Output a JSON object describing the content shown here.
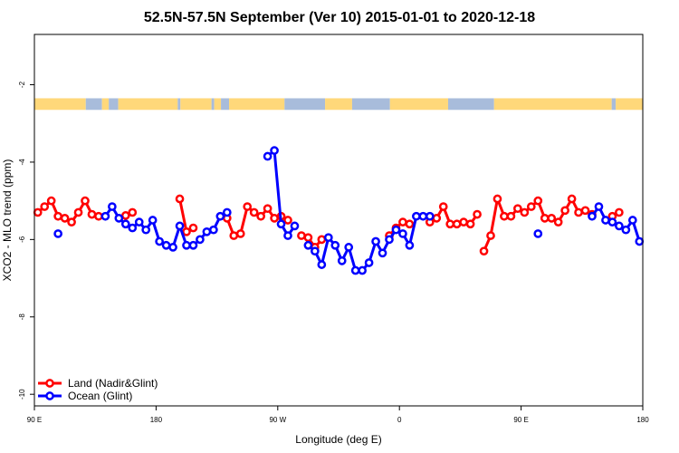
{
  "chart_data": {
    "type": "line",
    "title": "52.5N-57.5N September (Ver 10)   2015-01-01 to 2020-12-18",
    "xlabel": "Longitude (deg E)",
    "ylabel": "XCO2 - MLO trend (ppm)",
    "xlim": [
      90,
      540
    ],
    "ylim": [
      -10.3,
      -0.7
    ],
    "x_ticks": [
      {
        "value": 90,
        "label": "90 E"
      },
      {
        "value": 180,
        "label": "180"
      },
      {
        "value": 270,
        "label": "90 W"
      },
      {
        "value": 360,
        "label": "0"
      },
      {
        "value": 450,
        "label": "90 E"
      },
      {
        "value": 540,
        "label": "180"
      }
    ],
    "y_ticks": [
      {
        "value": -2,
        "label": "-2"
      },
      {
        "value": -4,
        "label": "-4"
      },
      {
        "value": -6,
        "label": "-6"
      },
      {
        "value": -8,
        "label": "-8"
      },
      {
        "value": -10,
        "label": "-10"
      }
    ],
    "series": [
      {
        "name": "Land (Nadir&Glint)",
        "color": "#ff0000",
        "segments": [
          [
            [
              92.5,
              -5.3
            ],
            [
              97.5,
              -5.15
            ],
            [
              102.5,
              -5.0
            ],
            [
              107.5,
              -5.4
            ],
            [
              112.5,
              -5.45
            ],
            [
              117.5,
              -5.55
            ],
            [
              122.5,
              -5.3
            ],
            [
              127.5,
              -5.0
            ],
            [
              132.5,
              -5.35
            ],
            [
              137.5,
              -5.4
            ]
          ],
          [
            [
              157.5,
              -5.38
            ],
            [
              162.5,
              -5.3
            ]
          ],
          [
            [
              197.5,
              -4.95
            ],
            [
              202.5,
              -5.8
            ],
            [
              207.5,
              -5.7
            ]
          ],
          [
            [
              232.5,
              -5.45
            ],
            [
              237.5,
              -5.9
            ],
            [
              242.5,
              -5.85
            ],
            [
              247.5,
              -5.15
            ],
            [
              252.5,
              -5.3
            ],
            [
              257.5,
              -5.4
            ],
            [
              262.5,
              -5.2
            ],
            [
              267.5,
              -5.45
            ],
            [
              272.5,
              -5.4
            ],
            [
              277.5,
              -5.5
            ]
          ],
          [
            [
              287.5,
              -5.9
            ],
            [
              292.5,
              -5.95
            ],
            [
              297.5,
              -6.2
            ],
            [
              302.5,
              -6.0
            ]
          ],
          [
            [
              352.5,
              -5.9
            ],
            [
              357.5,
              -5.7
            ],
            [
              362.5,
              -5.55
            ],
            [
              367.5,
              -5.6
            ]
          ],
          [
            [
              382.5,
              -5.55
            ],
            [
              387.5,
              -5.45
            ],
            [
              392.5,
              -5.15
            ],
            [
              397.5,
              -5.6
            ],
            [
              402.5,
              -5.6
            ],
            [
              407.5,
              -5.55
            ],
            [
              412.5,
              -5.6
            ],
            [
              417.5,
              -5.35
            ]
          ],
          [
            [
              422.5,
              -6.3
            ],
            [
              427.5,
              -5.9
            ],
            [
              432.5,
              -4.95
            ],
            [
              437.5,
              -5.4
            ],
            [
              442.5,
              -5.4
            ],
            [
              447.5,
              -5.2
            ],
            [
              452.5,
              -5.3
            ],
            [
              457.5,
              -5.15
            ],
            [
              462.5,
              -5.0
            ],
            [
              467.5,
              -5.45
            ]
          ],
          [
            [
              472.5,
              -5.45
            ],
            [
              477.5,
              -5.55
            ],
            [
              482.5,
              -5.25
            ],
            [
              487.5,
              -4.95
            ],
            [
              492.5,
              -5.3
            ],
            [
              497.5,
              -5.25
            ],
            [
              502.5,
              -5.35
            ]
          ],
          [
            [
              517.5,
              -5.4
            ],
            [
              522.5,
              -5.3
            ]
          ]
        ]
      },
      {
        "name": "Ocean (Glint)",
        "color": "#0000ff",
        "segments": [
          [
            [
              107.5,
              -5.85
            ]
          ],
          [
            [
              142.5,
              -5.4
            ],
            [
              147.5,
              -5.15
            ],
            [
              152.5,
              -5.45
            ],
            [
              157.5,
              -5.6
            ],
            [
              162.5,
              -5.7
            ],
            [
              167.5,
              -5.55
            ],
            [
              172.5,
              -5.75
            ],
            [
              177.5,
              -5.5
            ],
            [
              182.5,
              -6.05
            ],
            [
              187.5,
              -6.15
            ],
            [
              192.5,
              -6.2
            ],
            [
              197.5,
              -5.65
            ],
            [
              202.5,
              -6.15
            ],
            [
              207.5,
              -6.15
            ],
            [
              212.5,
              -6.0
            ],
            [
              217.5,
              -5.8
            ],
            [
              222.5,
              -5.75
            ],
            [
              227.5,
              -5.4
            ],
            [
              232.5,
              -5.3
            ]
          ],
          [
            [
              262.5,
              -3.85
            ],
            [
              267.5,
              -3.7
            ],
            [
              272.5,
              -5.6
            ],
            [
              277.5,
              -5.9
            ],
            [
              282.5,
              -5.65
            ]
          ],
          [
            [
              292.5,
              -6.15
            ],
            [
              297.5,
              -6.3
            ],
            [
              302.5,
              -6.65
            ],
            [
              307.5,
              -5.95
            ],
            [
              312.5,
              -6.15
            ],
            [
              317.5,
              -6.55
            ],
            [
              322.5,
              -6.2
            ],
            [
              327.5,
              -6.8
            ],
            [
              332.5,
              -6.8
            ],
            [
              337.5,
              -6.6
            ],
            [
              342.5,
              -6.05
            ],
            [
              347.5,
              -6.35
            ],
            [
              352.5,
              -6.0
            ],
            [
              357.5,
              -5.75
            ],
            [
              362.5,
              -5.85
            ],
            [
              367.5,
              -6.15
            ],
            [
              372.5,
              -5.4
            ],
            [
              377.5,
              -5.4
            ],
            [
              382.5,
              -5.4
            ]
          ],
          [
            [
              462.5,
              -5.85
            ]
          ],
          [
            [
              502.5,
              -5.4
            ],
            [
              507.5,
              -5.15
            ],
            [
              512.5,
              -5.5
            ],
            [
              517.5,
              -5.55
            ],
            [
              522.5,
              -5.65
            ],
            [
              527.5,
              -5.75
            ],
            [
              532.5,
              -5.5
            ],
            [
              537.5,
              -6.05
            ]
          ]
        ]
      }
    ],
    "legend": {
      "position": "bottom-left",
      "entries": [
        "Land (Nadir&Glint)",
        "Ocean (Glint)"
      ]
    },
    "land_ocean_strip": {
      "y_range": [
        -2.35,
        -2.65
      ],
      "land_color": "#ffd87a",
      "ocean_color": "#a8bcdb",
      "segments": [
        [
          "land",
          90,
          128
        ],
        [
          "ocean",
          128,
          140
        ],
        [
          "land",
          140,
          145
        ],
        [
          "ocean",
          145,
          152
        ],
        [
          "land",
          152,
          196
        ],
        [
          "ocean",
          196,
          198
        ],
        [
          "land",
          198,
          221
        ],
        [
          "ocean",
          221,
          223
        ],
        [
          "land",
          223,
          228
        ],
        [
          "ocean",
          228,
          234
        ],
        [
          "land",
          234,
          275
        ],
        [
          "ocean",
          275,
          305
        ],
        [
          "land",
          305,
          325
        ],
        [
          "ocean",
          325,
          353
        ],
        [
          "land",
          353,
          396
        ],
        [
          "ocean",
          396,
          430
        ],
        [
          "land",
          430,
          517
        ],
        [
          "ocean",
          517,
          520
        ],
        [
          "land",
          520,
          540
        ]
      ]
    }
  }
}
